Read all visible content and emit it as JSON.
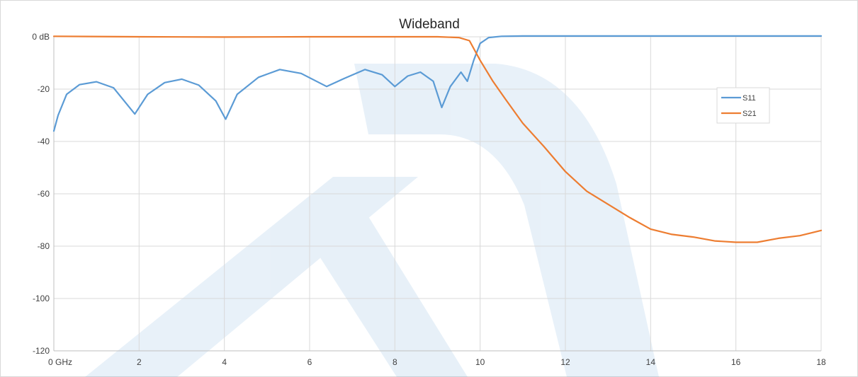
{
  "chart_data": {
    "type": "line",
    "title": "Wideband",
    "xlabel": "",
    "ylabel": "",
    "xlim": [
      0,
      18
    ],
    "ylim": [
      -120,
      0
    ],
    "x_ticks": [
      0,
      2,
      4,
      6,
      8,
      10,
      12,
      14,
      16,
      18
    ],
    "x_tick_labels": [
      "0  GHz",
      "2",
      "4",
      "6",
      "8",
      "10",
      "12",
      "14",
      "16",
      "18"
    ],
    "y_ticks": [
      0,
      -20,
      -40,
      -60,
      -80,
      -100,
      -120
    ],
    "y_tick_labels": [
      "0 dB",
      "-20",
      "-40",
      "-60",
      "-80",
      "-100",
      "-120"
    ],
    "grid": true,
    "legend_position": "right",
    "series": [
      {
        "name": "S11",
        "color": "#5B9BD5",
        "x": [
          0,
          0.1,
          0.3,
          0.6,
          1.0,
          1.4,
          1.9,
          2.2,
          2.6,
          3.0,
          3.4,
          3.8,
          4.03,
          4.3,
          4.8,
          5.3,
          5.8,
          6.4,
          6.8,
          7.3,
          7.7,
          8.0,
          8.3,
          8.6,
          8.9,
          9.1,
          9.3,
          9.55,
          9.7,
          9.85,
          10.0,
          10.2,
          10.5,
          11,
          12,
          13,
          14,
          15,
          16,
          17,
          18
        ],
        "values": [
          -36,
          -30,
          -22,
          -18.3,
          -17.2,
          -19.5,
          -29.5,
          -22,
          -17.5,
          -16.2,
          -18.5,
          -24.5,
          -31.5,
          -22,
          -15.5,
          -12.5,
          -14,
          -19,
          -16,
          -12.5,
          -14.5,
          -19,
          -15,
          -13.5,
          -17,
          -27,
          -19,
          -13.5,
          -17,
          -9,
          -2.5,
          -0.3,
          0.2,
          0.3,
          0.3,
          0.3,
          0.3,
          0.3,
          0.3,
          0.3,
          0.3
        ]
      },
      {
        "name": "S21",
        "color": "#ED7D31",
        "x": [
          0,
          2,
          4,
          6,
          8,
          9,
          9.5,
          9.75,
          10.0,
          10.3,
          10.6,
          11.0,
          11.5,
          12.0,
          12.5,
          13.0,
          13.5,
          14.0,
          14.5,
          15.0,
          15.5,
          16.0,
          16.5,
          17.0,
          17.5,
          18.0
        ],
        "values": [
          0.2,
          0,
          -0.1,
          0,
          0,
          0,
          -0.3,
          -1.5,
          -9,
          -17,
          -24,
          -33,
          -42,
          -51.5,
          -59,
          -64,
          -69,
          -73.5,
          -75.5,
          -76.5,
          -78,
          -78.5,
          -78.5,
          -77,
          -76,
          -74
        ]
      }
    ]
  }
}
